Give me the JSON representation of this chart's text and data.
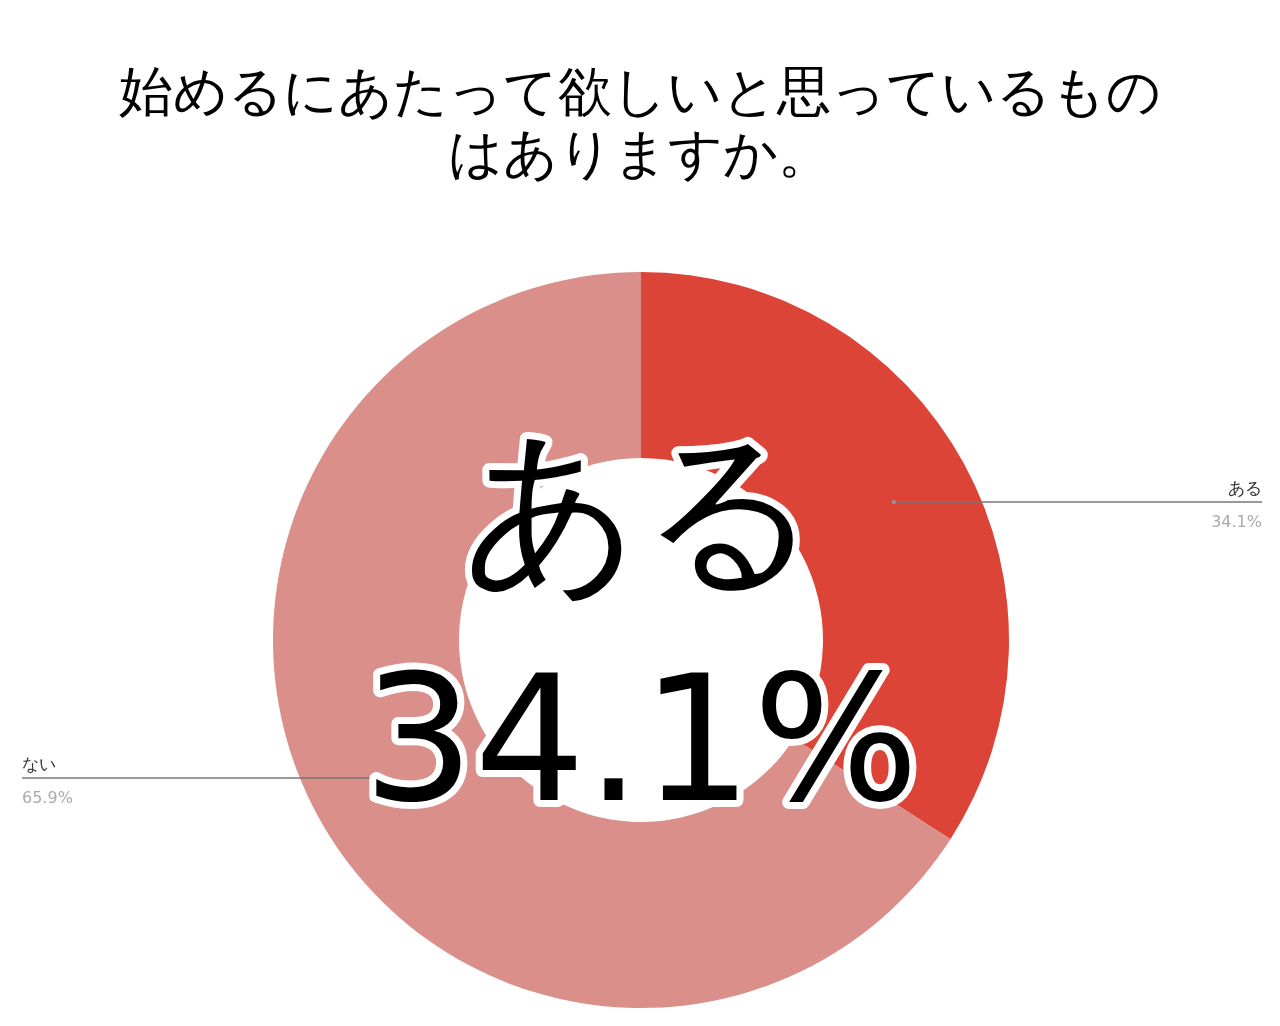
{
  "chart_data": {
    "type": "donut",
    "title": "始めるにあたって欲しいと思っているものはありますか。",
    "categories": [
      "ある",
      "ない"
    ],
    "values": [
      34.1,
      65.9
    ],
    "colors": [
      "#db4437",
      "#da8f8a"
    ],
    "value_labels": [
      "34.1%",
      "65.9%"
    ],
    "annotations": [
      "ある",
      "34.1%"
    ]
  }
}
